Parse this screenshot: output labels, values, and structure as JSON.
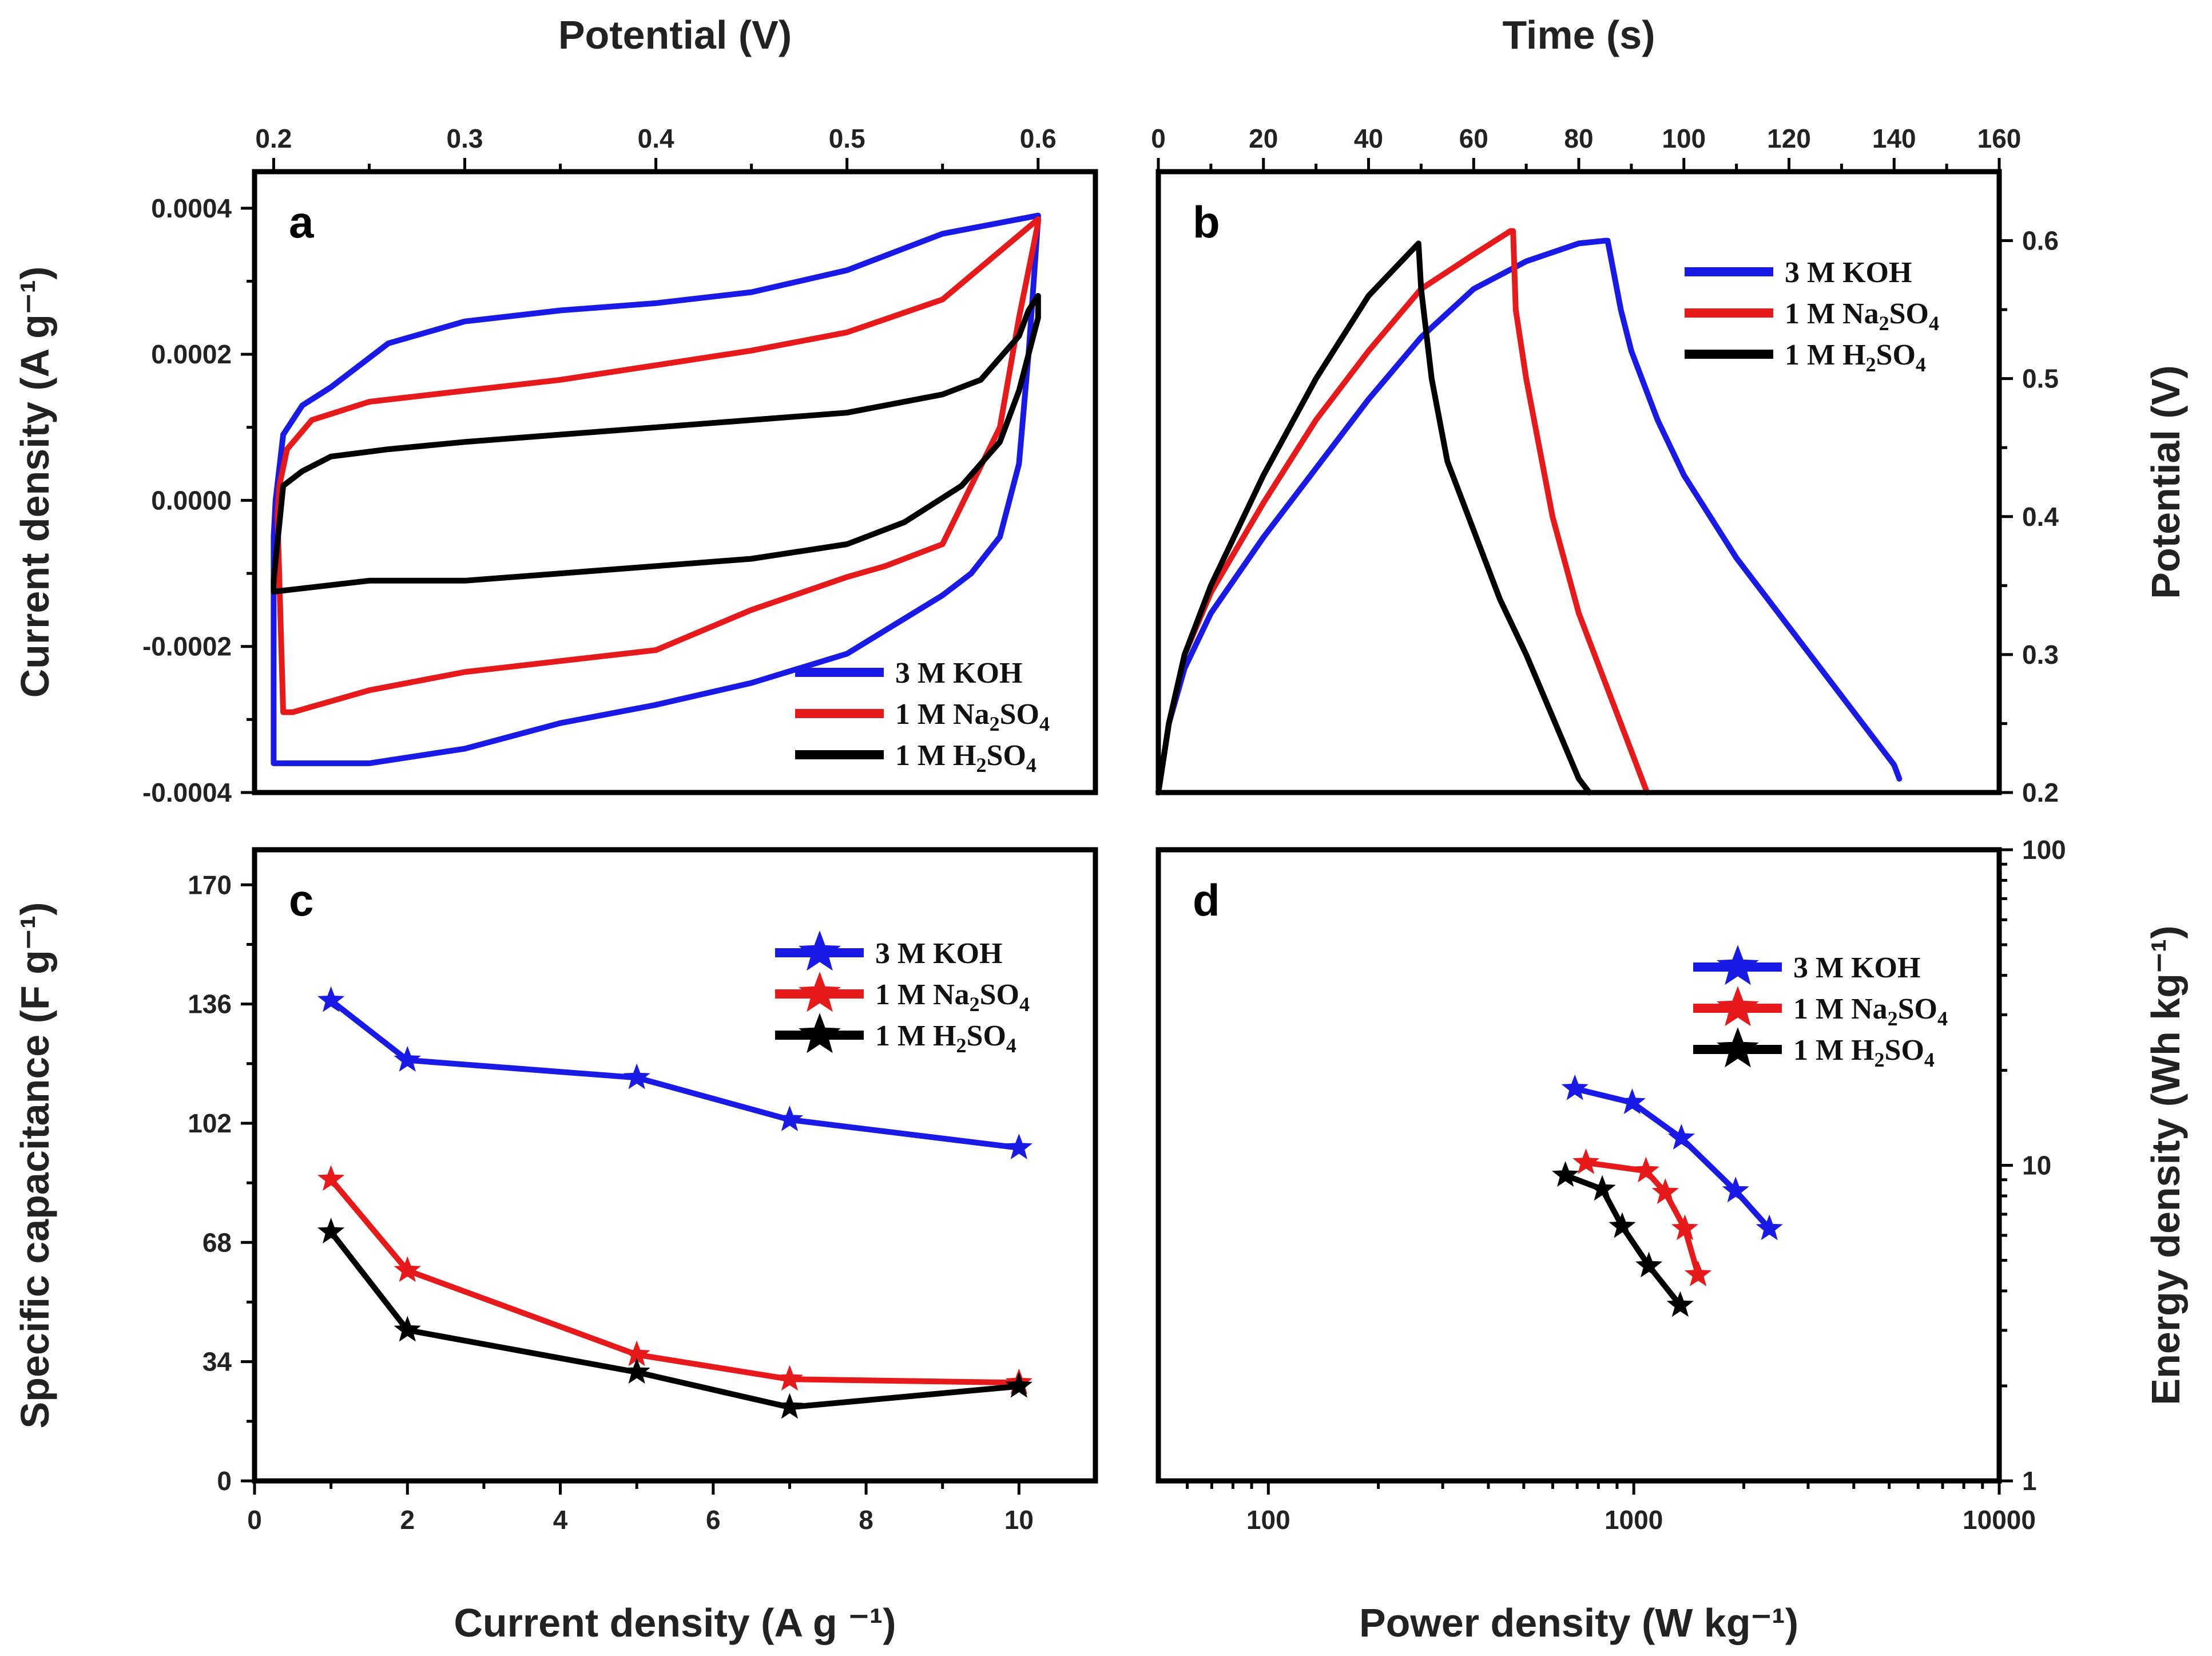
{
  "chart_data": [
    {
      "panel": "a",
      "type": "line",
      "xlabel": "Potential (V)",
      "ylabel": "Current density (A g⁻¹)",
      "xlim": [
        0.19,
        0.63
      ],
      "ylim": [
        -0.0004,
        0.00045
      ],
      "xticks": [
        0.2,
        0.3,
        0.4,
        0.5,
        0.6
      ],
      "xtick_labels": [
        "0.2",
        "0.3",
        "0.4",
        "0.5",
        "0.6"
      ],
      "yticks": [
        -0.0004,
        -0.0002,
        0.0,
        0.0002,
        0.0004
      ],
      "ytick_labels": [
        "-0.0004",
        "-0.0002",
        "0.0000",
        "0.0002",
        "0.0004"
      ],
      "legend_position": "bottom-right",
      "series": [
        {
          "name": "3 M KOH",
          "base": "3 M KOH",
          "sub": "",
          "color": "#1a1ae6",
          "x": [
            0.2,
            0.201,
            0.205,
            0.215,
            0.23,
            0.26,
            0.3,
            0.35,
            0.4,
            0.45,
            0.5,
            0.55,
            0.58,
            0.6,
            0.6,
            0.595,
            0.59,
            0.58,
            0.565,
            0.55,
            0.5,
            0.45,
            0.4,
            0.35,
            0.3,
            0.25,
            0.2,
            0.2
          ],
          "y": [
            -5e-05,
            0.0,
            9e-05,
            0.00013,
            0.000155,
            0.000215,
            0.000245,
            0.00026,
            0.00027,
            0.000285,
            0.000315,
            0.000365,
            0.00038,
            0.00039,
            0.000385,
            0.0002,
            5e-05,
            -5e-05,
            -0.0001,
            -0.00013,
            -0.00021,
            -0.00025,
            -0.00028,
            -0.000305,
            -0.00034,
            -0.00036,
            -0.00036,
            -5e-05
          ]
        },
        {
          "name": "1 M Na2SO4",
          "base": "1 M Na",
          "sub": "2",
          "tail": "SO",
          "sub2": "4",
          "color": "#e61a1a",
          "x": [
            0.202,
            0.203,
            0.207,
            0.22,
            0.25,
            0.3,
            0.35,
            0.4,
            0.45,
            0.5,
            0.55,
            0.6,
            0.6,
            0.59,
            0.58,
            0.565,
            0.55,
            0.52,
            0.5,
            0.45,
            0.4,
            0.35,
            0.3,
            0.25,
            0.21,
            0.205,
            0.202
          ],
          "y": [
            -2e-05,
            2e-05,
            7e-05,
            0.00011,
            0.000135,
            0.00015,
            0.000165,
            0.000185,
            0.000205,
            0.00023,
            0.000275,
            0.000385,
            0.00038,
            0.00025,
            0.0001,
            2e-05,
            -6e-05,
            -9e-05,
            -0.000105,
            -0.00015,
            -0.000205,
            -0.00022,
            -0.000235,
            -0.00026,
            -0.00029,
            -0.00029,
            -2e-05
          ]
        },
        {
          "name": "1 M H2SO4",
          "base": "1 M H",
          "sub": "2",
          "tail": "SO",
          "sub2": "4",
          "color": "#000000",
          "x": [
            0.205,
            0.215,
            0.23,
            0.26,
            0.3,
            0.35,
            0.4,
            0.45,
            0.5,
            0.55,
            0.57,
            0.59,
            0.595,
            0.6,
            0.6,
            0.59,
            0.58,
            0.56,
            0.53,
            0.5,
            0.45,
            0.4,
            0.35,
            0.3,
            0.25,
            0.2,
            0.2,
            0.205
          ],
          "y": [
            2e-05,
            4e-05,
            6e-05,
            7e-05,
            8e-05,
            9e-05,
            0.0001,
            0.00011,
            0.00012,
            0.000145,
            0.000165,
            0.000225,
            0.00026,
            0.00028,
            0.00025,
            0.00015,
            8e-05,
            2e-05,
            -3e-05,
            -6e-05,
            -8e-05,
            -9e-05,
            -0.0001,
            -0.00011,
            -0.00011,
            -0.000125,
            -0.00011,
            2e-05
          ]
        }
      ]
    },
    {
      "panel": "b",
      "type": "line",
      "xlabel": "Time (s)",
      "ylabel": "Potential (V)",
      "xlim": [
        0,
        160
      ],
      "ylim": [
        0.2,
        0.65
      ],
      "xticks": [
        0,
        20,
        40,
        60,
        80,
        100,
        120,
        140,
        160
      ],
      "xtick_labels": [
        "0",
        "20",
        "40",
        "60",
        "80",
        "100",
        "120",
        "140",
        "160"
      ],
      "yticks": [
        0.2,
        0.3,
        0.4,
        0.5,
        0.6
      ],
      "ytick_labels": [
        "0.2",
        "0.3",
        "0.4",
        "0.5",
        "0.6"
      ],
      "legend_position": "top-right",
      "series": [
        {
          "name": "3 M KOH",
          "base": "3 M KOH",
          "sub": "",
          "color": "#1a1ae6",
          "x": [
            0,
            2,
            5,
            10,
            20,
            30,
            40,
            50,
            60,
            70,
            80,
            85,
            85.5,
            88,
            90,
            95,
            100,
            110,
            120,
            130,
            140,
            141
          ],
          "y": [
            0.2,
            0.25,
            0.29,
            0.33,
            0.385,
            0.435,
            0.485,
            0.53,
            0.565,
            0.585,
            0.598,
            0.6,
            0.6,
            0.55,
            0.52,
            0.47,
            0.43,
            0.37,
            0.32,
            0.27,
            0.22,
            0.21
          ]
        },
        {
          "name": "1 M Na2SO4",
          "base": "1 M Na",
          "sub": "2",
          "tail": "SO",
          "sub2": "4",
          "color": "#e61a1a",
          "x": [
            0,
            2,
            5,
            10,
            20,
            30,
            40,
            50,
            60,
            67,
            67.5,
            68,
            70,
            75,
            80,
            85,
            90,
            93
          ],
          "y": [
            0.2,
            0.25,
            0.3,
            0.345,
            0.41,
            0.47,
            0.52,
            0.565,
            0.59,
            0.607,
            0.607,
            0.55,
            0.5,
            0.4,
            0.33,
            0.28,
            0.23,
            0.2
          ]
        },
        {
          "name": "1 M H2SO4",
          "base": "1 M H",
          "sub": "2",
          "tail": "SO",
          "sub2": "4",
          "color": "#000000",
          "x": [
            0,
            2,
            5,
            10,
            20,
            30,
            40,
            48,
            49.5,
            50,
            52,
            55,
            60,
            65,
            70,
            75,
            80,
            82
          ],
          "y": [
            0.2,
            0.25,
            0.3,
            0.35,
            0.43,
            0.5,
            0.56,
            0.592,
            0.598,
            0.565,
            0.5,
            0.44,
            0.39,
            0.34,
            0.3,
            0.255,
            0.21,
            0.2
          ]
        }
      ]
    },
    {
      "panel": "c",
      "type": "line",
      "xlabel": "Current density (A g ⁻¹)",
      "ylabel": "Specific capacitance (F g⁻¹)",
      "xlim": [
        0,
        11
      ],
      "ylim": [
        0,
        180
      ],
      "xticks": [
        0,
        2,
        4,
        6,
        8,
        10
      ],
      "xtick_labels": [
        "0",
        "2",
        "4",
        "6",
        "8",
        "10"
      ],
      "yticks": [
        0,
        34,
        68,
        102,
        136,
        170
      ],
      "ytick_labels": [
        "0",
        "34",
        "68",
        "102",
        "136",
        "170"
      ],
      "legend_position": "top-right",
      "markers": "star",
      "series": [
        {
          "name": "3 M KOH",
          "base": "3 M KOH",
          "sub": "",
          "color": "#1a1ae6",
          "x": [
            1,
            2,
            5,
            7,
            10
          ],
          "y": [
            137,
            120,
            115,
            103,
            95
          ]
        },
        {
          "name": "1 M Na2SO4",
          "base": "1 M Na",
          "sub": "2",
          "tail": "SO",
          "sub2": "4",
          "color": "#e61a1a",
          "x": [
            1,
            2,
            5,
            7,
            10
          ],
          "y": [
            86,
            60,
            36,
            29,
            28
          ]
        },
        {
          "name": "1 M H2SO4",
          "base": "1 M H",
          "sub": "2",
          "tail": "SO",
          "sub2": "4",
          "color": "#000000",
          "x": [
            1,
            2,
            5,
            7,
            10
          ],
          "y": [
            71,
            43,
            31,
            21,
            27
          ]
        }
      ]
    },
    {
      "panel": "d",
      "type": "line",
      "xscale": "log",
      "yscale": "log",
      "xlabel": "Power density (W kg⁻¹)",
      "ylabel": "Energy density (Wh kg⁻¹)",
      "xlim": [
        50,
        10000
      ],
      "ylim": [
        1,
        100
      ],
      "xticks": [
        100,
        1000,
        10000
      ],
      "xtick_labels": [
        "100",
        "1000",
        "10000"
      ],
      "yticks": [
        1,
        10,
        100
      ],
      "ytick_labels": [
        "1",
        "10",
        "100"
      ],
      "legend_position": "top-right",
      "markers": "star",
      "series": [
        {
          "name": "3 M KOH",
          "base": "3 M KOH",
          "sub": "",
          "color": "#1a1ae6",
          "x": [
            690,
            990,
            1350,
            1900,
            2350
          ],
          "y": [
            17.5,
            15.8,
            12.2,
            8.3,
            6.3
          ]
        },
        {
          "name": "1 M Na2SO4",
          "base": "1 M Na",
          "sub": "2",
          "tail": "SO",
          "sub2": "4",
          "color": "#e61a1a",
          "x": [
            740,
            1080,
            1220,
            1380,
            1500
          ],
          "y": [
            10.2,
            9.6,
            8.2,
            6.3,
            4.5
          ]
        },
        {
          "name": "1 M H2SO4",
          "base": "1 M H",
          "sub": "2",
          "tail": "SO",
          "sub2": "4",
          "color": "#000000",
          "x": [
            650,
            820,
            930,
            1100,
            1340
          ],
          "y": [
            9.3,
            8.4,
            6.4,
            4.8,
            3.6
          ]
        }
      ]
    }
  ]
}
